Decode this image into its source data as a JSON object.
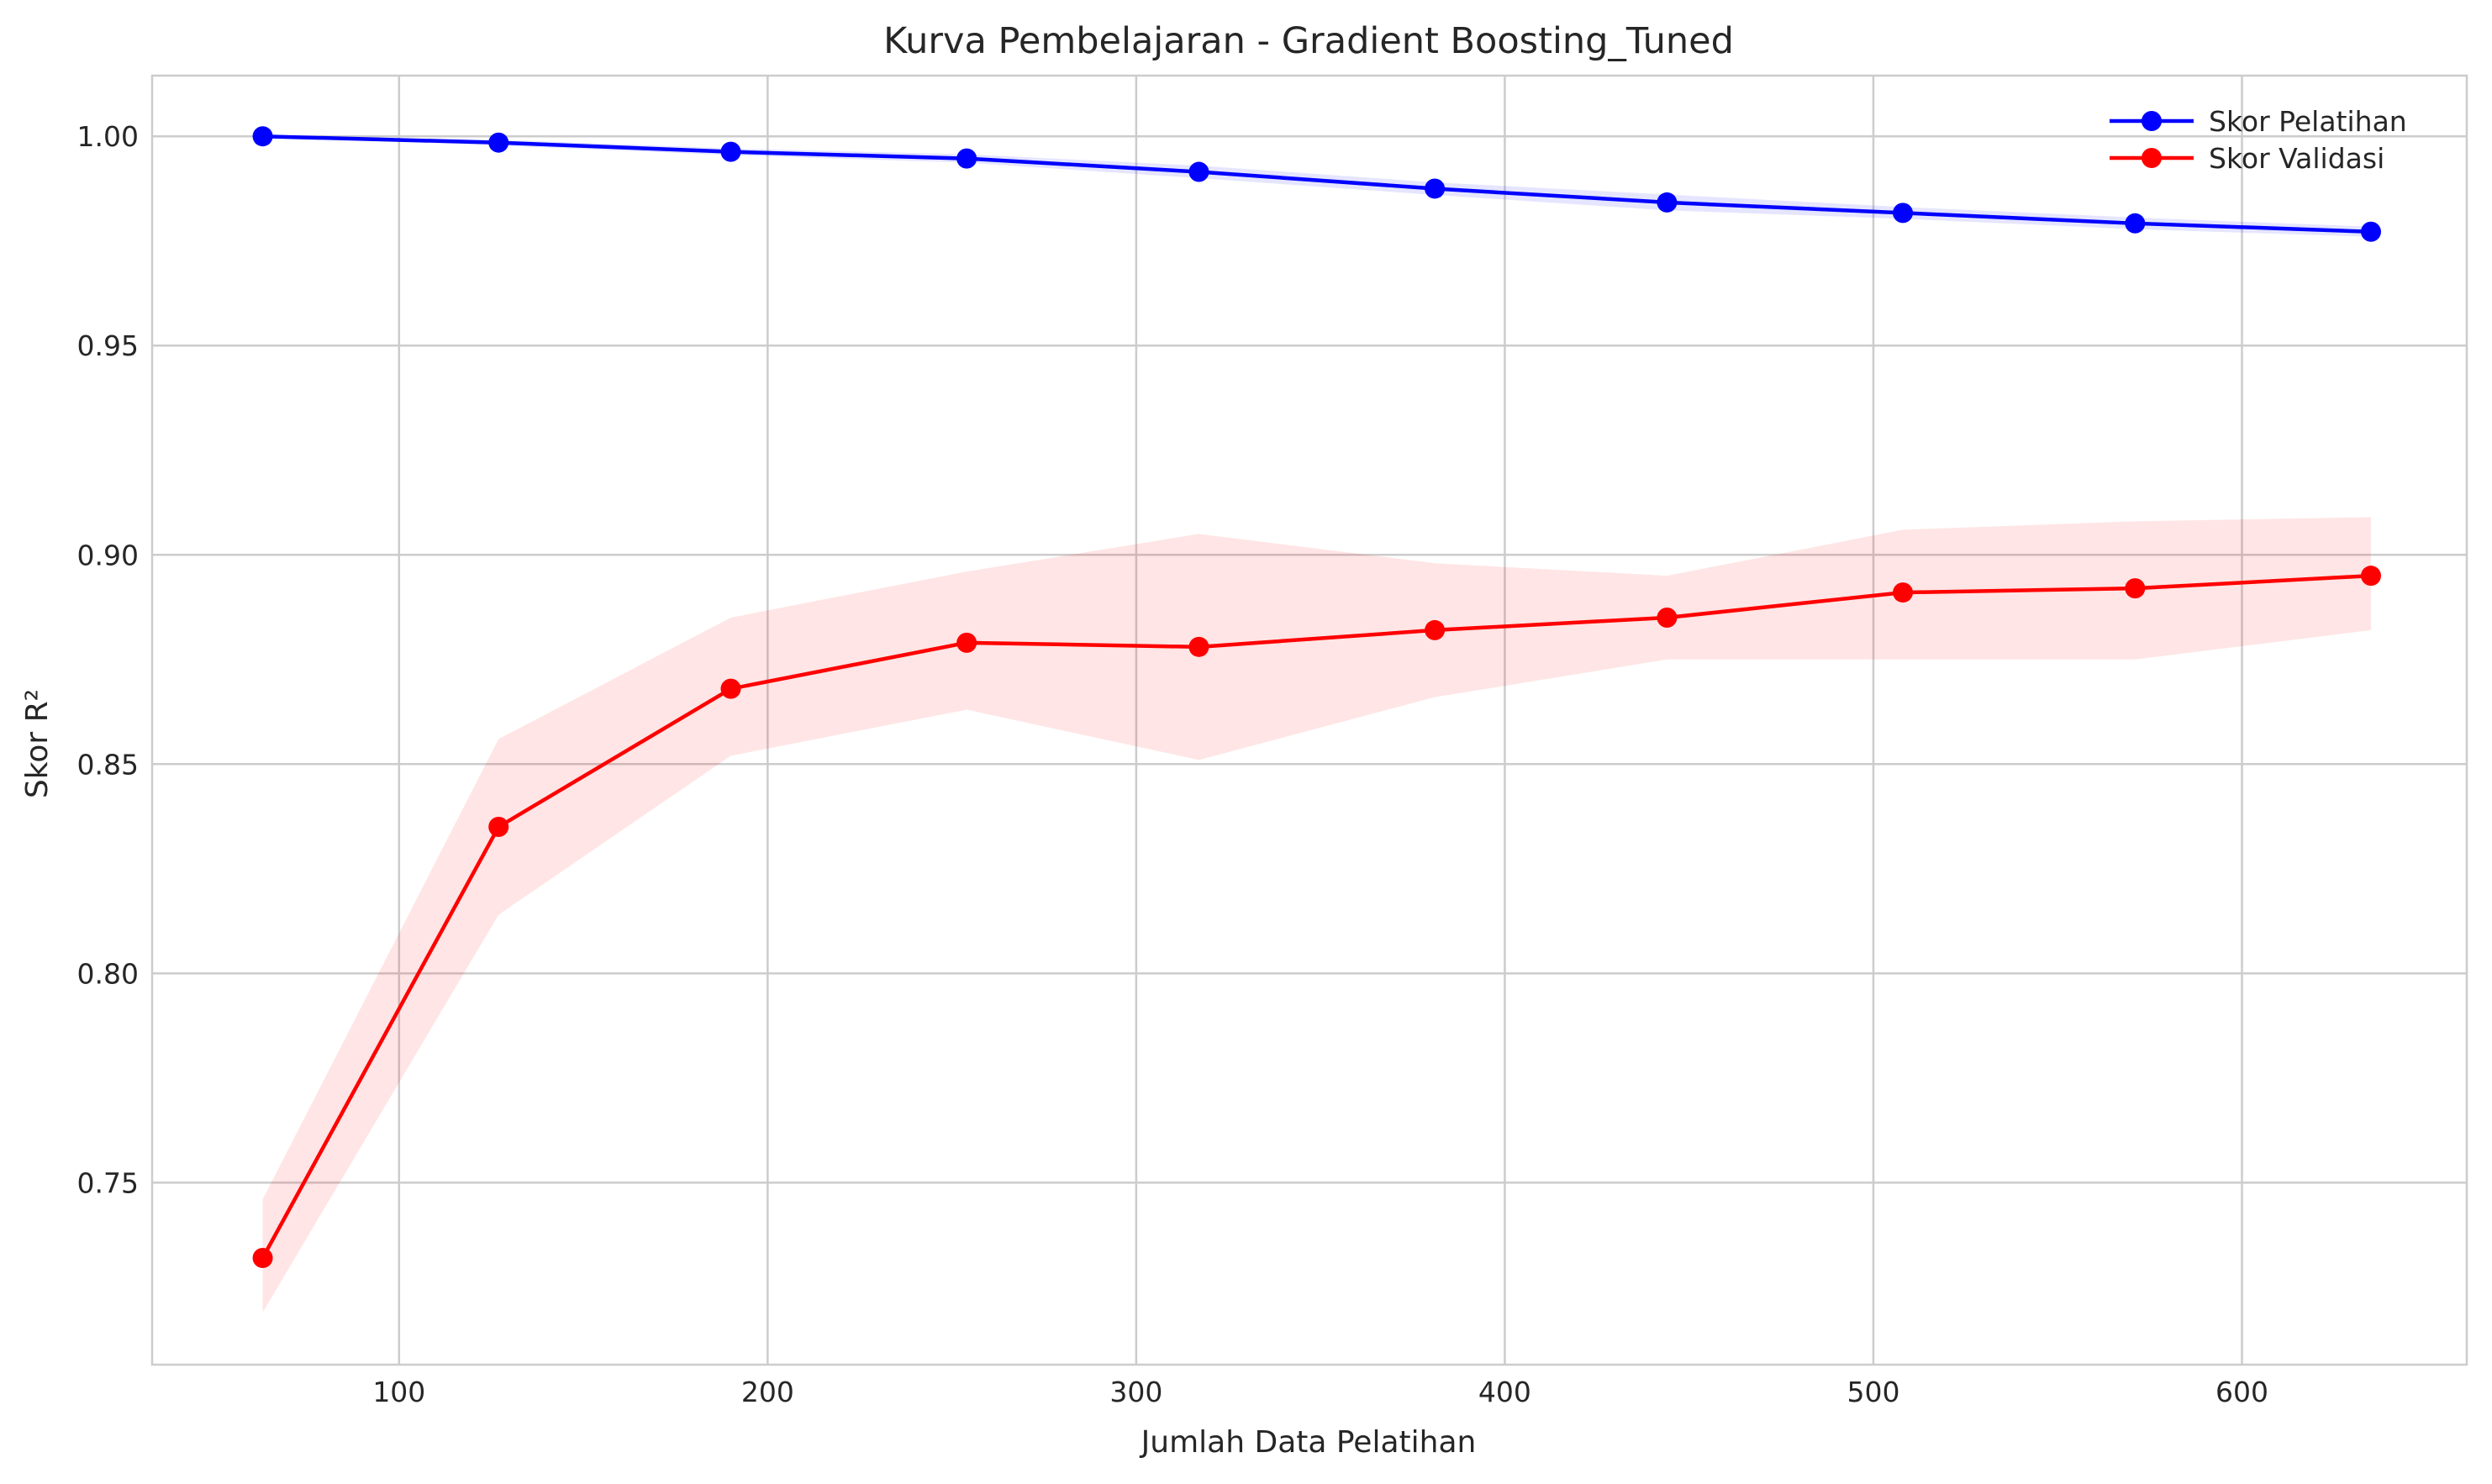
{
  "chart_data": {
    "type": "line",
    "title": "Kurva Pembelajaran - Gradient Boosting_Tuned",
    "xlabel": "Jumlah Data Pelatihan",
    "ylabel": "Skor R²",
    "xlim": [
      33,
      661
    ],
    "ylim": [
      0.7065,
      1.0145
    ],
    "x_ticks": [
      100,
      200,
      300,
      400,
      500,
      600
    ],
    "x_tick_labels": [
      "100",
      "200",
      "300",
      "400",
      "500",
      "600"
    ],
    "y_ticks": [
      0.75,
      0.8,
      0.85,
      0.9,
      0.95,
      1.0
    ],
    "y_tick_labels": [
      "0.75",
      "0.80",
      "0.85",
      "0.90",
      "0.95",
      "1.00"
    ],
    "grid": true,
    "legend_position": "top-right",
    "x": [
      63,
      127,
      190,
      254,
      317,
      381,
      444,
      508,
      571,
      635
    ],
    "series": [
      {
        "name": "Skor Pelatihan",
        "color": "#0000ff",
        "band_color": "#0000ff",
        "values": [
          1.0,
          0.9985,
          0.9963,
          0.9947,
          0.9915,
          0.9875,
          0.9842,
          0.9817,
          0.9792,
          0.9772
        ],
        "band_lower": [
          0.9998,
          0.9978,
          0.9955,
          0.9937,
          0.99,
          0.986,
          0.9823,
          0.9803,
          0.9778,
          0.976
        ],
        "band_upper": [
          1.0,
          0.9992,
          0.9971,
          0.9957,
          0.993,
          0.989,
          0.9861,
          0.9831,
          0.9806,
          0.9784
        ]
      },
      {
        "name": "Skor Validasi",
        "color": "#ff0000",
        "band_color": "#ff0000",
        "values": [
          0.732,
          0.835,
          0.868,
          0.879,
          0.878,
          0.882,
          0.885,
          0.891,
          0.892,
          0.895
        ],
        "band_lower": [
          0.719,
          0.814,
          0.852,
          0.863,
          0.851,
          0.866,
          0.875,
          0.875,
          0.875,
          0.882
        ],
        "band_upper": [
          0.746,
          0.856,
          0.885,
          0.896,
          0.905,
          0.898,
          0.895,
          0.906,
          0.908,
          0.909
        ]
      }
    ]
  }
}
